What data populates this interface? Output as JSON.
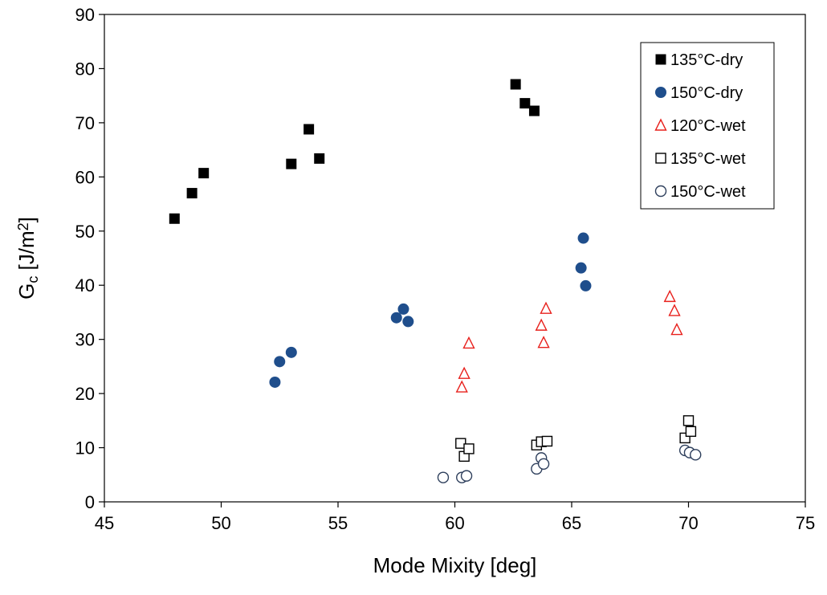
{
  "chart_data": {
    "type": "scatter",
    "xlabel": "Mode Mixity [deg]",
    "ylabel": {
      "base": "G",
      "sub": "c",
      "mid": " [J/m",
      "sup": "2",
      "end": "]"
    },
    "xlim": [
      45,
      75
    ],
    "ylim": [
      0,
      90
    ],
    "xticks": [
      45,
      50,
      55,
      60,
      65,
      70,
      75
    ],
    "yticks": [
      0,
      10,
      20,
      30,
      40,
      50,
      60,
      70,
      80,
      90
    ],
    "grid": false,
    "legend_position": "top-right",
    "series": [
      {
        "name": "135°C-dry",
        "marker": "square",
        "filled": true,
        "color": "#000000",
        "points": [
          [
            48.0,
            52.3
          ],
          [
            48.75,
            57.0
          ],
          [
            49.25,
            60.7
          ],
          [
            53.0,
            62.4
          ],
          [
            53.75,
            68.8
          ],
          [
            54.2,
            63.4
          ],
          [
            62.6,
            77.1
          ],
          [
            63.0,
            73.6
          ],
          [
            63.4,
            72.2
          ]
        ]
      },
      {
        "name": "150°C-dry",
        "marker": "circle",
        "filled": true,
        "color": "#1f4e8c",
        "points": [
          [
            52.3,
            22.1
          ],
          [
            52.5,
            25.9
          ],
          [
            53.0,
            27.6
          ],
          [
            57.5,
            34.0
          ],
          [
            57.8,
            35.6
          ],
          [
            58.0,
            33.3
          ],
          [
            65.4,
            43.2
          ],
          [
            65.5,
            48.7
          ],
          [
            65.6,
            39.9
          ]
        ]
      },
      {
        "name": "120°C-wet",
        "marker": "triangle",
        "filled": false,
        "color": "#e8201c",
        "points": [
          [
            60.3,
            21.2
          ],
          [
            60.4,
            23.7
          ],
          [
            60.6,
            29.3
          ],
          [
            63.7,
            32.6
          ],
          [
            63.8,
            29.4
          ],
          [
            63.9,
            35.7
          ],
          [
            69.2,
            37.9
          ],
          [
            69.4,
            35.3
          ],
          [
            69.5,
            31.8
          ]
        ]
      },
      {
        "name": "135°C-wet",
        "marker": "square",
        "filled": false,
        "color": "#000000",
        "points": [
          [
            60.25,
            10.8
          ],
          [
            60.4,
            8.4
          ],
          [
            60.6,
            9.8
          ],
          [
            63.5,
            10.5
          ],
          [
            63.7,
            11.1
          ],
          [
            63.95,
            11.2
          ],
          [
            69.85,
            11.8
          ],
          [
            70.0,
            15.0
          ],
          [
            70.1,
            13.0
          ]
        ]
      },
      {
        "name": "150°C-wet",
        "marker": "circle",
        "filled": false,
        "color": "#2e3f5c",
        "points": [
          [
            59.5,
            4.5
          ],
          [
            60.3,
            4.5
          ],
          [
            60.5,
            4.8
          ],
          [
            63.5,
            6.1
          ],
          [
            63.7,
            8.1
          ],
          [
            63.8,
            7.0
          ],
          [
            69.85,
            9.5
          ],
          [
            70.05,
            9.1
          ],
          [
            70.3,
            8.7
          ]
        ]
      }
    ]
  }
}
